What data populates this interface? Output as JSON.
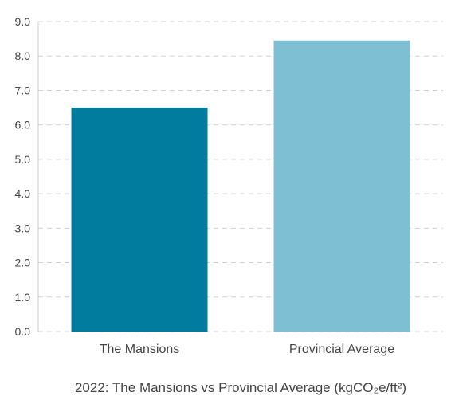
{
  "chart_data": {
    "type": "bar",
    "categories": [
      "The Mansions",
      "Provincial Average"
    ],
    "values": [
      6.5,
      8.45
    ],
    "colors": [
      "#017c9f",
      "#7fbfd3"
    ],
    "yticks": [
      "0.0",
      "1.0",
      "2.0",
      "3.0",
      "4.0",
      "5.0",
      "6.0",
      "7.0",
      "8.0",
      "9.0"
    ],
    "ylim": [
      0,
      9
    ],
    "grid": true,
    "xlabel": "2022: The Mansions vs Provincial Average (kgCO₂e/ft²)",
    "ylabel": "",
    "title": ""
  }
}
